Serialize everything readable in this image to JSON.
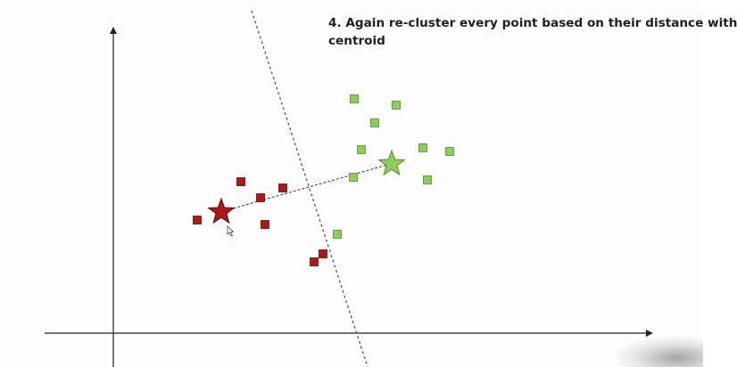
{
  "title": {
    "line1": "4. Again re-cluster every point based on their distance with",
    "line2": "centroid"
  },
  "colors": {
    "red_cluster_fill": "#b01818",
    "red_cluster_stroke": "#5a0a0a",
    "green_cluster_fill": "#8fcd5a",
    "green_cluster_stroke": "#4f8a30",
    "axis": "#222222",
    "divider": "#555555",
    "centroid_link": "#333333"
  },
  "icons": {
    "red_centroid": "star",
    "green_centroid": "star",
    "cursor": "mouse-pointer"
  }
}
